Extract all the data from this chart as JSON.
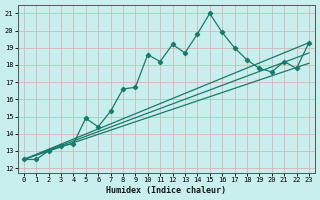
{
  "xlabel": "Humidex (Indice chaleur)",
  "bg_color": "#c8eeee",
  "grid_color": "#d4b8b8",
  "line_color": "#1a7a6a",
  "xlim": [
    -0.5,
    23.5
  ],
  "ylim": [
    11.7,
    21.5
  ],
  "xticks": [
    0,
    1,
    2,
    3,
    4,
    5,
    6,
    7,
    8,
    9,
    10,
    11,
    12,
    13,
    14,
    15,
    16,
    17,
    18,
    19,
    20,
    21,
    22,
    23
  ],
  "yticks": [
    12,
    13,
    14,
    15,
    16,
    17,
    18,
    19,
    20,
    21
  ],
  "main_x": [
    0,
    1,
    2,
    3,
    4,
    5,
    6,
    7,
    8,
    9,
    10,
    11,
    12,
    13,
    14,
    15,
    16,
    17,
    18,
    19,
    20,
    21,
    22,
    23
  ],
  "main_y": [
    12.5,
    12.5,
    13.0,
    13.3,
    13.4,
    14.9,
    14.4,
    15.3,
    16.6,
    16.7,
    18.6,
    18.2,
    19.2,
    18.7,
    19.8,
    21.0,
    19.9,
    19.0,
    18.3,
    17.8,
    17.6,
    18.2,
    17.8,
    19.3
  ],
  "trend1_x": [
    0,
    23
  ],
  "trend1_y": [
    12.5,
    19.3
  ],
  "trend2_x": [
    0,
    23
  ],
  "trend2_y": [
    12.5,
    18.7
  ],
  "trend3_x": [
    0,
    23
  ],
  "trend3_y": [
    12.5,
    18.1
  ]
}
